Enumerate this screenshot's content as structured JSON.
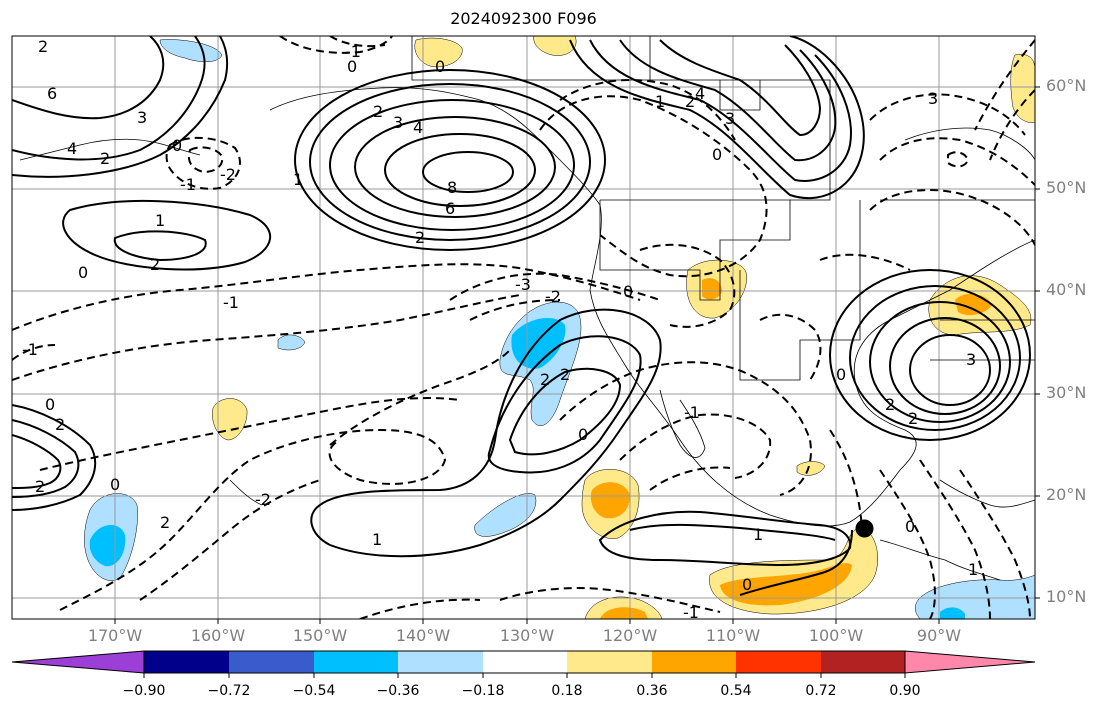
{
  "title": "2024092300 F096",
  "lat_labels": [
    "60°N",
    "50°N",
    "40°N",
    "30°N",
    "20°N",
    "10°N"
  ],
  "lon_labels": [
    "170°W",
    "160°W",
    "150°W",
    "140°W",
    "130°W",
    "120°W",
    "110°W",
    "100°W",
    "90°W"
  ],
  "colorbar": {
    "ticks": [
      "−0.90",
      "−0.72",
      "−0.54",
      "−0.36",
      "−0.18",
      "0.18",
      "0.36",
      "0.54",
      "0.72",
      "0.90"
    ],
    "colors": [
      "#9b3fd6",
      "#00008b",
      "#3a5bcc",
      "#00bfff",
      "#b0e0ff",
      "#ffffff",
      "#ffe98a",
      "#ffa500",
      "#ff3300",
      "#b22222",
      "#ff88aa"
    ]
  },
  "contour_labels": [
    "2",
    "-1",
    "0",
    "0",
    "6",
    "3",
    "4",
    "2",
    "0",
    "-2",
    "-1",
    "1",
    "2",
    "2",
    "3",
    "4",
    "8",
    "6",
    "2",
    "1",
    "0",
    "2",
    "1",
    "4",
    "3",
    "-3",
    "-2",
    "0",
    "2",
    "-1",
    "3",
    "2",
    "0",
    "0",
    "-1",
    "2",
    "2",
    "2",
    "3",
    "2",
    "1",
    "0",
    "-1",
    "0",
    "2",
    "-2",
    "-1",
    "1",
    "0",
    "0",
    "1",
    "0"
  ],
  "marker": {
    "lon": -97.3,
    "lat": 16.8
  }
}
